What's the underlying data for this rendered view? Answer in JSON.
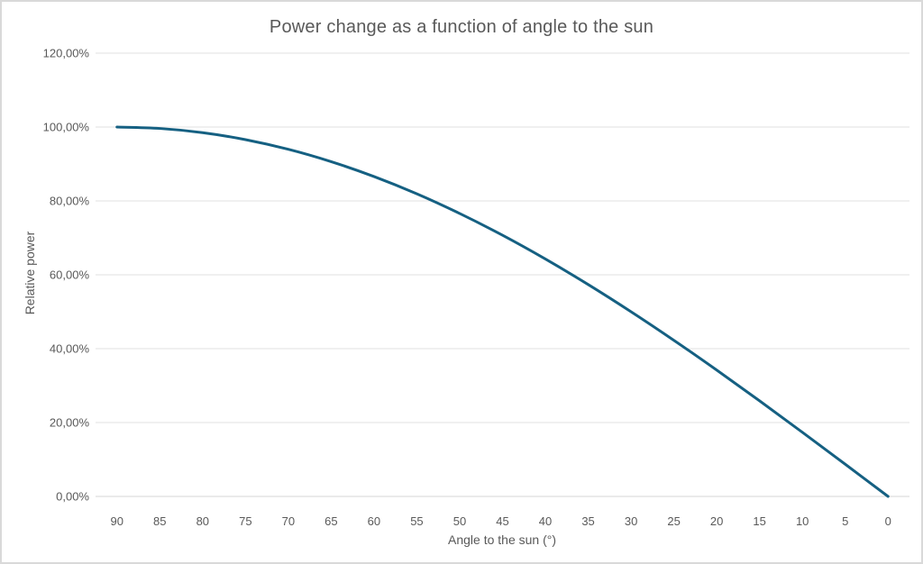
{
  "window": {
    "background": "#FFFFFF",
    "border_color": "#D9D9D9"
  },
  "chart": {
    "title": "Power change as a function of angle to the sun",
    "x_axis_title": "Angle to the sun (°)",
    "y_axis_title": "Relative power"
  },
  "chart_data": {
    "type": "line",
    "title": "Power change as a function of angle to the sun",
    "xlabel": "Angle to the sun (°)",
    "ylabel": "Relative power",
    "categories": [
      "90",
      "85",
      "80",
      "75",
      "70",
      "65",
      "60",
      "55",
      "50",
      "45",
      "40",
      "35",
      "30",
      "25",
      "20",
      "15",
      "10",
      "5",
      "0"
    ],
    "series": [
      {
        "name": "Relative power",
        "values": [
          1.0,
          0.9962,
          0.9848,
          0.9659,
          0.9397,
          0.9063,
          0.866,
          0.8192,
          0.766,
          0.7071,
          0.6428,
          0.5736,
          0.5,
          0.4226,
          0.342,
          0.2588,
          0.1736,
          0.0872,
          0.0
        ],
        "color": "#156082",
        "smooth": true,
        "stroke_width": 3
      }
    ],
    "y_ticks": [
      {
        "value": 0.0,
        "label": "0,00%"
      },
      {
        "value": 0.2,
        "label": "20,00%"
      },
      {
        "value": 0.4,
        "label": "40,00%"
      },
      {
        "value": 0.6,
        "label": "60,00%"
      },
      {
        "value": 0.8,
        "label": "80,00%"
      },
      {
        "value": 1.0,
        "label": "100,00%"
      },
      {
        "value": 1.2,
        "label": "120,00%"
      }
    ],
    "ylim": [
      0,
      1.2
    ],
    "x_axis_reversed": true,
    "grid": "horizontal-only",
    "legend": "none",
    "gridline_color": "#E2E2E2",
    "axis_line_color": "#D4D4D4",
    "text_color": "#595959"
  }
}
